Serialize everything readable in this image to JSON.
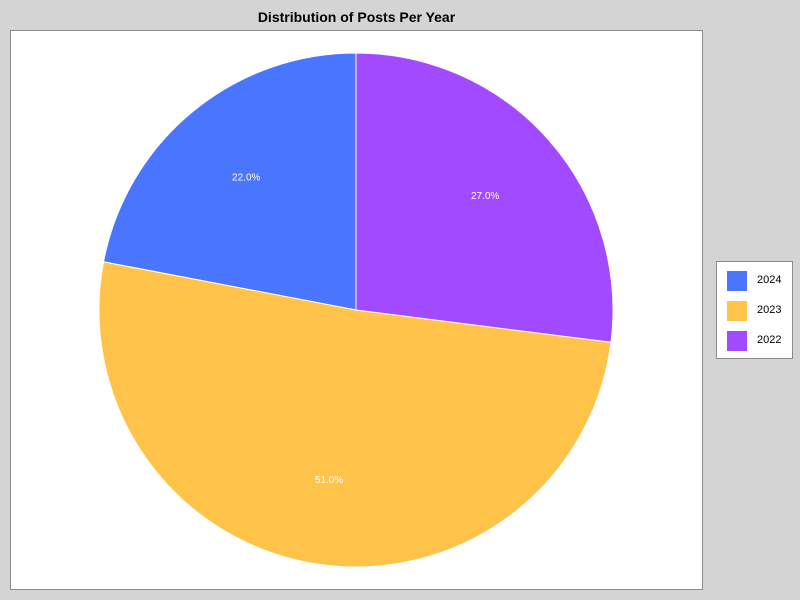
{
  "chart_data": {
    "type": "pie",
    "title": "Distribution of Posts Per Year",
    "categories": [
      "2024",
      "2023",
      "2022"
    ],
    "values": [
      22.0,
      51.0,
      27.0
    ],
    "labels": [
      "22.0%",
      "51.0%",
      "27.0%"
    ],
    "colors": [
      "#4a76ff",
      "#ffc34a",
      "#a24aff"
    ],
    "label_colors": [
      "#ffffff",
      "#000000",
      "#ffffff"
    ],
    "start": "12 o'clock",
    "direction": "counterclockwise",
    "legend": "right"
  }
}
